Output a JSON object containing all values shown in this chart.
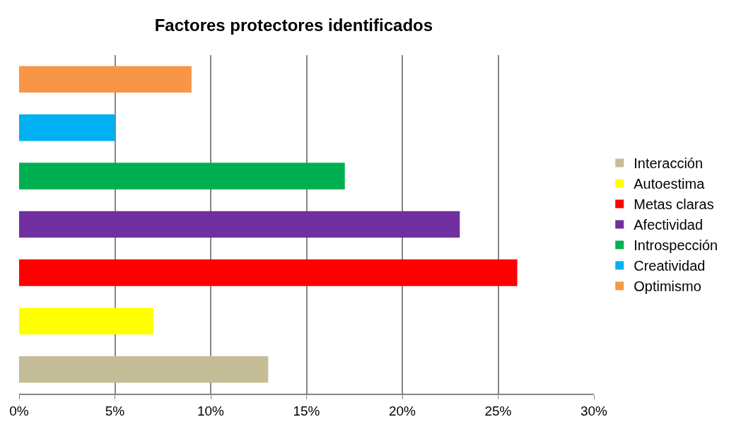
{
  "chart_data": {
    "type": "bar",
    "orientation": "horizontal",
    "title": "Factores protectores identificados",
    "categories": [
      null,
      null,
      null,
      null,
      null,
      null,
      null
    ],
    "series": [
      {
        "name": "Interacción",
        "color": "#c4bd97",
        "values": [
          null,
          null,
          null,
          null,
          null,
          null,
          13
        ]
      },
      {
        "name": "Autoestima",
        "color": "#ffff00",
        "values": [
          null,
          null,
          null,
          null,
          null,
          7,
          null
        ]
      },
      {
        "name": "Metas claras",
        "color": "#ff0000",
        "values": [
          null,
          null,
          null,
          null,
          26,
          null,
          null
        ]
      },
      {
        "name": "Afectividad",
        "color": "#7030a0",
        "values": [
          null,
          null,
          null,
          23,
          null,
          null,
          null
        ]
      },
      {
        "name": "Introspección",
        "color": "#00b050",
        "values": [
          null,
          null,
          17,
          null,
          null,
          null,
          null
        ]
      },
      {
        "name": "Creatividad",
        "color": "#00b0f0",
        "values": [
          null,
          5,
          null,
          null,
          null,
          null,
          null
        ]
      },
      {
        "name": "Optimismo",
        "color": "#f79646",
        "values": [
          9,
          null,
          null,
          null,
          null,
          null,
          null
        ]
      }
    ],
    "xlim": [
      0,
      30
    ],
    "xticks": [
      {
        "value": 0,
        "label": "0%"
      },
      {
        "value": 5,
        "label": "5%"
      },
      {
        "value": 10,
        "label": "10%"
      },
      {
        "value": 15,
        "label": "15%"
      },
      {
        "value": 20,
        "label": "20%"
      },
      {
        "value": 25,
        "label": "25%"
      },
      {
        "value": 30,
        "label": "30%"
      }
    ],
    "grid": "x",
    "legend": "right"
  }
}
